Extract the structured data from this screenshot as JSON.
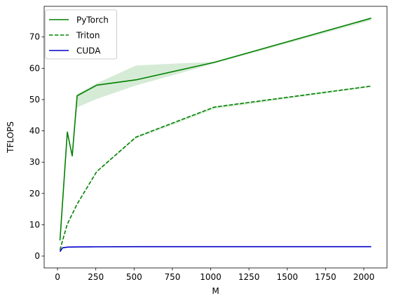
{
  "chart_data": {
    "type": "line",
    "title": "",
    "xlabel": "M",
    "ylabel": "TFLOPS",
    "xlim": [
      -87.2,
      2151.2
    ],
    "ylim": [
      -3.8,
      79.8
    ],
    "xticks": [
      0,
      250,
      500,
      750,
      1000,
      1250,
      1500,
      1750,
      2000
    ],
    "xtick_labels": [
      "0",
      "250",
      "500",
      "750",
      "1000",
      "1250",
      "1500",
      "1750",
      "2000"
    ],
    "yticks": [
      0,
      10,
      20,
      30,
      40,
      50,
      60,
      70
    ],
    "ytick_labels": [
      "0",
      "10",
      "20",
      "30",
      "40",
      "50",
      "60",
      "70"
    ],
    "grid": false,
    "legend_position": "top-left",
    "series": [
      {
        "name": "PyTorch",
        "color": "#008000",
        "dash": "solid",
        "x": [
          16,
          64,
          96,
          128,
          256,
          512,
          1024,
          2048
        ],
        "y": [
          5.0,
          39.6,
          32.0,
          51.2,
          54.6,
          56.3,
          61.9,
          76.0
        ],
        "band_lower": [
          5.0,
          39.6,
          32.0,
          47.5,
          50.2,
          54.5,
          61.5,
          75.3
        ],
        "band_upper": [
          5.0,
          39.6,
          32.0,
          51.8,
          55.2,
          60.9,
          62.1,
          76.2
        ]
      },
      {
        "name": "Triton",
        "color": "#008000",
        "dash": "dashed",
        "x": [
          16,
          32,
          64,
          128,
          256,
          512,
          1024,
          2048
        ],
        "y": [
          1.9,
          4.8,
          10.2,
          16.6,
          27.0,
          38.0,
          47.6,
          54.3
        ],
        "band_lower": [
          1.9,
          4.8,
          10.2,
          16.6,
          26.8,
          37.5,
          47.0,
          54.0
        ],
        "band_upper": [
          1.9,
          4.8,
          10.2,
          16.6,
          27.1,
          38.2,
          47.8,
          54.5
        ]
      },
      {
        "name": "CUDA",
        "color": "#0000cc",
        "dash": "solid",
        "x": [
          16,
          32,
          64,
          128,
          256,
          512,
          1024,
          2048
        ],
        "y": [
          1.4,
          2.6,
          2.85,
          2.9,
          2.95,
          3.0,
          3.0,
          3.0
        ]
      }
    ]
  }
}
